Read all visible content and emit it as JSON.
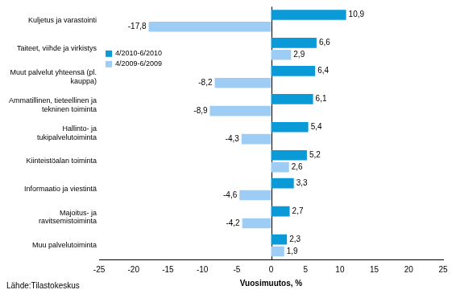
{
  "chart_data": {
    "type": "bar",
    "orientation": "horizontal",
    "categories": [
      "Kuljetus ja varastointi",
      "Taiteet, viihde ja virkistys",
      "Muut palvelut yhteensä (pl. kauppa)",
      "Ammatillinen, tieteellinen ja tekninen toiminta",
      "Hallinto- ja tukipalvelutoiminta",
      "Kiinteistöalan toiminta",
      "Informaatio ja viestintä",
      "Majoitus- ja ravitsemistoiminta",
      "Muu palvelutoiminta"
    ],
    "series": [
      {
        "name": "4/2010-6/2010",
        "color": "#0a9ad8",
        "values": [
          10.9,
          6.6,
          6.4,
          6.1,
          5.4,
          5.2,
          3.3,
          2.7,
          2.3
        ],
        "value_labels": [
          "10,9",
          "6,6",
          "6,4",
          "6,1",
          "5,4",
          "5,2",
          "3,3",
          "2,7",
          "2,3"
        ]
      },
      {
        "name": "4/2009-6/2009",
        "color": "#9dcdf5",
        "values": [
          -17.8,
          2.9,
          -8.2,
          -8.9,
          -4.3,
          2.6,
          -4.6,
          -4.2,
          1.9
        ],
        "value_labels": [
          "-17,8",
          "2,9",
          "-8,2",
          "-8,9",
          "-4,3",
          "2,6",
          "-4,6",
          "-4,2",
          "1,9"
        ]
      }
    ],
    "x_label": "Vuosimuutos, %",
    "annotations": [
      "Lähde:Tilastokeskus"
    ],
    "xlim": [
      -25,
      25
    ],
    "xticks": [
      -25,
      -20,
      -15,
      -10,
      -5,
      0,
      5,
      10,
      15,
      20,
      25
    ],
    "grid": false,
    "legend": "upper left",
    "data_labels": true
  }
}
